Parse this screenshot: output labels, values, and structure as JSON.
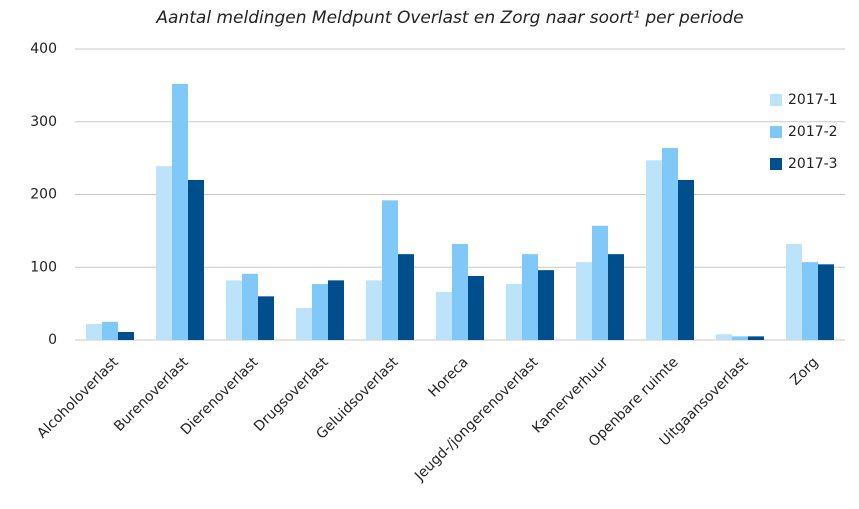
{
  "chart_data": {
    "type": "bar",
    "title": "Aantal meldingen Meldpunt Overlast en Zorg naar soort¹ per periode",
    "categories": [
      "Alcoholoverlast",
      "Burenoverlast",
      "Dierenoverlast",
      "Drugsoverlast",
      "Geluidsoverlast",
      "Horeca",
      "Jeugd-/jongerenoverlast",
      "Kamerverhuur",
      "Openbare ruimte",
      "Uitgaansoverlast",
      "Zorg"
    ],
    "series": [
      {
        "name": "2017-1",
        "color": "#bde3fb",
        "values": [
          22,
          239,
          82,
          44,
          82,
          66,
          77,
          107,
          247,
          8,
          132
        ]
      },
      {
        "name": "2017-2",
        "color": "#7fc8f8",
        "values": [
          25,
          352,
          91,
          77,
          192,
          132,
          118,
          157,
          264,
          5,
          107
        ]
      },
      {
        "name": "2017-3",
        "color": "#004f8c",
        "values": [
          11,
          220,
          60,
          82,
          118,
          88,
          96,
          118,
          220,
          5,
          104
        ]
      }
    ],
    "ylim": [
      0,
      400
    ],
    "yticks": [
      0,
      100,
      200,
      300,
      400
    ],
    "grid": true,
    "legend": "right"
  }
}
